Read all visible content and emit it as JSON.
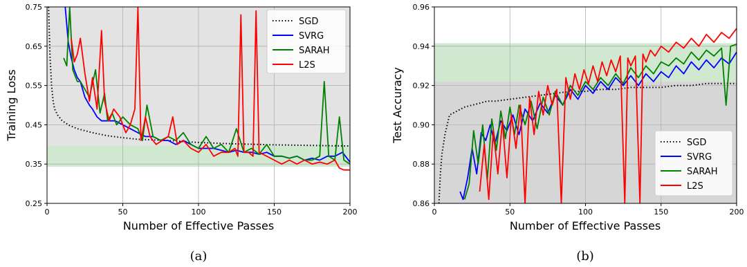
{
  "chart_data": [
    {
      "type": "line",
      "panel_label": "(a)",
      "xlabel": "Number of Effective Passes",
      "ylabel": "Training Loss",
      "xlim": [
        0,
        200
      ],
      "ylim": [
        0.25,
        0.75
      ],
      "xticks": [
        "0",
        "50",
        "100",
        "150",
        "200"
      ],
      "yticks": [
        "0.25",
        "0.35",
        "0.45",
        "0.55",
        "0.65",
        "0.75"
      ],
      "grid": true,
      "legend_position": "top-right",
      "shaded_bands": [
        {
          "y_range": [
            0.39,
            0.75
          ],
          "color": "#e3e3e3"
        },
        {
          "y_range": [
            0.343,
            0.397
          ],
          "color": "#cfe8cf"
        }
      ],
      "series": [
        {
          "name": "SGD",
          "color": "#000000",
          "style": "dotted",
          "x": [
            1,
            2,
            3,
            4,
            5,
            7,
            10,
            15,
            20,
            30,
            40,
            50,
            60,
            80,
            100,
            120,
            150,
            200
          ],
          "y": [
            0.75,
            0.62,
            0.55,
            0.51,
            0.49,
            0.475,
            0.46,
            0.448,
            0.44,
            0.43,
            0.422,
            0.417,
            0.413,
            0.41,
            0.405,
            0.402,
            0.399,
            0.396
          ]
        },
        {
          "name": "SVRG",
          "color": "#0000ff",
          "style": "solid",
          "x": [
            12,
            14,
            16,
            18,
            20,
            22,
            25,
            28,
            30,
            33,
            36,
            40,
            45,
            50,
            55,
            60,
            65,
            70,
            75,
            80,
            85,
            90,
            95,
            100,
            105,
            110,
            115,
            120,
            125,
            130,
            135,
            140,
            145,
            150,
            155,
            160,
            165,
            170,
            175,
            180,
            185,
            190,
            195,
            200
          ],
          "y": [
            0.75,
            0.66,
            0.62,
            0.59,
            0.57,
            0.56,
            0.52,
            0.5,
            0.49,
            0.47,
            0.46,
            0.46,
            0.46,
            0.45,
            0.44,
            0.43,
            0.42,
            0.42,
            0.41,
            0.41,
            0.4,
            0.41,
            0.4,
            0.39,
            0.39,
            0.39,
            0.385,
            0.38,
            0.385,
            0.38,
            0.38,
            0.375,
            0.38,
            0.37,
            0.37,
            0.365,
            0.37,
            0.36,
            0.365,
            0.36,
            0.37,
            0.37,
            0.38,
            0.355
          ]
        },
        {
          "name": "SARAH",
          "color": "#008000",
          "style": "solid",
          "x": [
            11,
            13,
            15,
            17,
            20,
            22,
            25,
            28,
            32,
            35,
            38,
            40,
            43,
            46,
            50,
            55,
            60,
            63,
            66,
            70,
            75,
            80,
            85,
            90,
            95,
            100,
            105,
            110,
            115,
            120,
            125,
            130,
            135,
            140,
            145,
            150,
            155,
            160,
            165,
            170,
            175,
            180,
            183,
            186,
            190,
            193,
            196,
            200
          ],
          "y": [
            0.62,
            0.6,
            0.75,
            0.59,
            0.56,
            0.56,
            0.54,
            0.52,
            0.59,
            0.48,
            0.53,
            0.46,
            0.48,
            0.45,
            0.47,
            0.45,
            0.44,
            0.41,
            0.5,
            0.42,
            0.41,
            0.42,
            0.41,
            0.43,
            0.4,
            0.39,
            0.42,
            0.39,
            0.4,
            0.38,
            0.44,
            0.38,
            0.39,
            0.375,
            0.4,
            0.37,
            0.37,
            0.365,
            0.37,
            0.36,
            0.36,
            0.37,
            0.56,
            0.37,
            0.36,
            0.47,
            0.36,
            0.35
          ]
        },
        {
          "name": "L2S",
          "color": "#ff0000",
          "style": "solid",
          "x": [
            16,
            18,
            20,
            22,
            25,
            28,
            30,
            33,
            36,
            38,
            41,
            44,
            48,
            52,
            55,
            58,
            60,
            62,
            65,
            68,
            72,
            76,
            80,
            83,
            86,
            90,
            95,
            100,
            105,
            110,
            115,
            120,
            124,
            126,
            128,
            130,
            133,
            136,
            138,
            140,
            145,
            150,
            155,
            160,
            165,
            170,
            175,
            180,
            185,
            190,
            193,
            196,
            200
          ],
          "y": [
            0.67,
            0.61,
            0.63,
            0.67,
            0.58,
            0.51,
            0.57,
            0.49,
            0.69,
            0.51,
            0.46,
            0.49,
            0.47,
            0.43,
            0.45,
            0.49,
            0.75,
            0.41,
            0.47,
            0.42,
            0.4,
            0.41,
            0.42,
            0.47,
            0.4,
            0.41,
            0.39,
            0.38,
            0.4,
            0.37,
            0.38,
            0.38,
            0.39,
            0.37,
            0.73,
            0.38,
            0.38,
            0.37,
            0.74,
            0.38,
            0.37,
            0.36,
            0.35,
            0.36,
            0.35,
            0.36,
            0.35,
            0.355,
            0.35,
            0.36,
            0.34,
            0.335,
            0.335
          ]
        }
      ]
    },
    {
      "type": "line",
      "panel_label": "(b)",
      "xlabel": "Number of Effective Passes",
      "ylabel": "Test Accuracy",
      "xlim": [
        0,
        200
      ],
      "ylim": [
        0.86,
        0.96
      ],
      "xticks": [
        "0",
        "50",
        "100",
        "150",
        "200"
      ],
      "yticks": [
        "0.86",
        "0.88",
        "0.90",
        "0.92",
        "0.94",
        "0.96"
      ],
      "grid": true,
      "legend_position": "bottom-right",
      "shaded_bands": [
        {
          "y_range": [
            0.86,
            0.922
          ],
          "color": "#d6d6d6"
        },
        {
          "y_range": [
            0.922,
            0.9415
          ],
          "color": "#cfe8cf"
        }
      ],
      "series": [
        {
          "name": "SGD",
          "color": "#000000",
          "style": "dotted",
          "x": [
            3,
            4,
            5,
            7,
            10,
            15,
            20,
            25,
            30,
            35,
            40,
            50,
            60,
            70,
            80,
            90,
            100,
            110,
            120,
            130,
            140,
            150,
            160,
            170,
            180,
            190,
            200
          ],
          "y": [
            0.86,
            0.875,
            0.885,
            0.895,
            0.905,
            0.907,
            0.909,
            0.91,
            0.911,
            0.912,
            0.912,
            0.913,
            0.914,
            0.915,
            0.916,
            0.917,
            0.917,
            0.918,
            0.918,
            0.919,
            0.919,
            0.919,
            0.92,
            0.92,
            0.921,
            0.921,
            0.921
          ]
        },
        {
          "name": "SVRG",
          "color": "#0000ff",
          "style": "solid",
          "x": [
            17,
            19,
            22,
            25,
            28,
            31,
            34,
            37,
            40,
            44,
            48,
            52,
            56,
            60,
            65,
            70,
            75,
            80,
            85,
            90,
            95,
            100,
            105,
            110,
            115,
            120,
            125,
            130,
            135,
            140,
            145,
            150,
            155,
            160,
            165,
            170,
            175,
            180,
            185,
            190,
            195,
            200
          ],
          "y": [
            0.866,
            0.862,
            0.873,
            0.888,
            0.875,
            0.896,
            0.892,
            0.9,
            0.89,
            0.902,
            0.897,
            0.905,
            0.895,
            0.908,
            0.902,
            0.911,
            0.906,
            0.915,
            0.91,
            0.918,
            0.913,
            0.92,
            0.916,
            0.922,
            0.918,
            0.924,
            0.92,
            0.925,
            0.92,
            0.926,
            0.922,
            0.927,
            0.924,
            0.93,
            0.926,
            0.932,
            0.928,
            0.933,
            0.929,
            0.934,
            0.931,
            0.937
          ]
        },
        {
          "name": "SARAH",
          "color": "#008000",
          "style": "solid",
          "x": [
            20,
            23,
            26,
            29,
            32,
            35,
            38,
            41,
            44,
            47,
            50,
            53,
            56,
            60,
            64,
            68,
            72,
            76,
            80,
            85,
            90,
            95,
            100,
            105,
            110,
            115,
            120,
            125,
            130,
            135,
            140,
            145,
            150,
            155,
            160,
            165,
            170,
            175,
            180,
            185,
            190,
            193,
            196,
            200
          ],
          "y": [
            0.862,
            0.87,
            0.897,
            0.88,
            0.9,
            0.872,
            0.903,
            0.887,
            0.907,
            0.893,
            0.909,
            0.895,
            0.91,
            0.9,
            0.912,
            0.898,
            0.914,
            0.905,
            0.917,
            0.91,
            0.92,
            0.915,
            0.922,
            0.918,
            0.924,
            0.92,
            0.926,
            0.921,
            0.929,
            0.924,
            0.93,
            0.926,
            0.932,
            0.93,
            0.934,
            0.931,
            0.937,
            0.933,
            0.938,
            0.935,
            0.939,
            0.91,
            0.94,
            0.941
          ]
        },
        {
          "name": "L2S",
          "color": "#ff0000",
          "style": "solid",
          "x": [
            30,
            33,
            36,
            39,
            42,
            45,
            48,
            51,
            54,
            57,
            60,
            63,
            66,
            69,
            72,
            75,
            78,
            81,
            84,
            87,
            90,
            93,
            96,
            99,
            102,
            105,
            108,
            111,
            114,
            117,
            120,
            123,
            126,
            128,
            130,
            133,
            136,
            138,
            140,
            143,
            146,
            150,
            155,
            160,
            165,
            170,
            175,
            180,
            185,
            190,
            195,
            200
          ],
          "y": [
            0.866,
            0.89,
            0.862,
            0.897,
            0.875,
            0.902,
            0.873,
            0.905,
            0.888,
            0.91,
            0.86,
            0.914,
            0.895,
            0.917,
            0.905,
            0.92,
            0.91,
            0.918,
            0.86,
            0.924,
            0.913,
            0.926,
            0.918,
            0.928,
            0.921,
            0.93,
            0.922,
            0.932,
            0.925,
            0.933,
            0.927,
            0.935,
            0.86,
            0.934,
            0.93,
            0.935,
            0.86,
            0.936,
            0.932,
            0.938,
            0.935,
            0.94,
            0.937,
            0.942,
            0.939,
            0.944,
            0.94,
            0.946,
            0.942,
            0.947,
            0.944,
            0.949
          ]
        }
      ]
    }
  ]
}
